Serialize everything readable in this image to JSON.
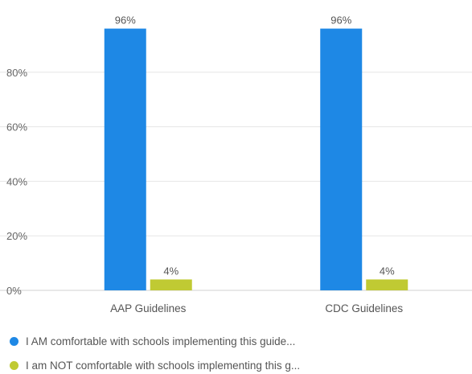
{
  "chart_data": {
    "type": "bar",
    "categories": [
      "AAP Guidelines",
      "CDC Guidelines"
    ],
    "series": [
      {
        "name": "I AM comfortable with schools implementing this guide...",
        "values": [
          96,
          96
        ],
        "color": "#1e88e5"
      },
      {
        "name": "I am NOT comfortable with schools implementing this g...",
        "values": [
          4,
          4
        ],
        "color": "#c0ca33"
      }
    ],
    "data_labels": [
      [
        "96%",
        "96%"
      ],
      [
        "4%",
        "4%"
      ]
    ],
    "ylim": [
      0,
      100
    ],
    "yticks": [
      {
        "value": 0,
        "label": "0%"
      },
      {
        "value": 20,
        "label": "20%"
      },
      {
        "value": 40,
        "label": "40%"
      },
      {
        "value": 60,
        "label": "60%"
      },
      {
        "value": 80,
        "label": "80%"
      }
    ],
    "grid": true,
    "legend_position": "bottom-left"
  }
}
